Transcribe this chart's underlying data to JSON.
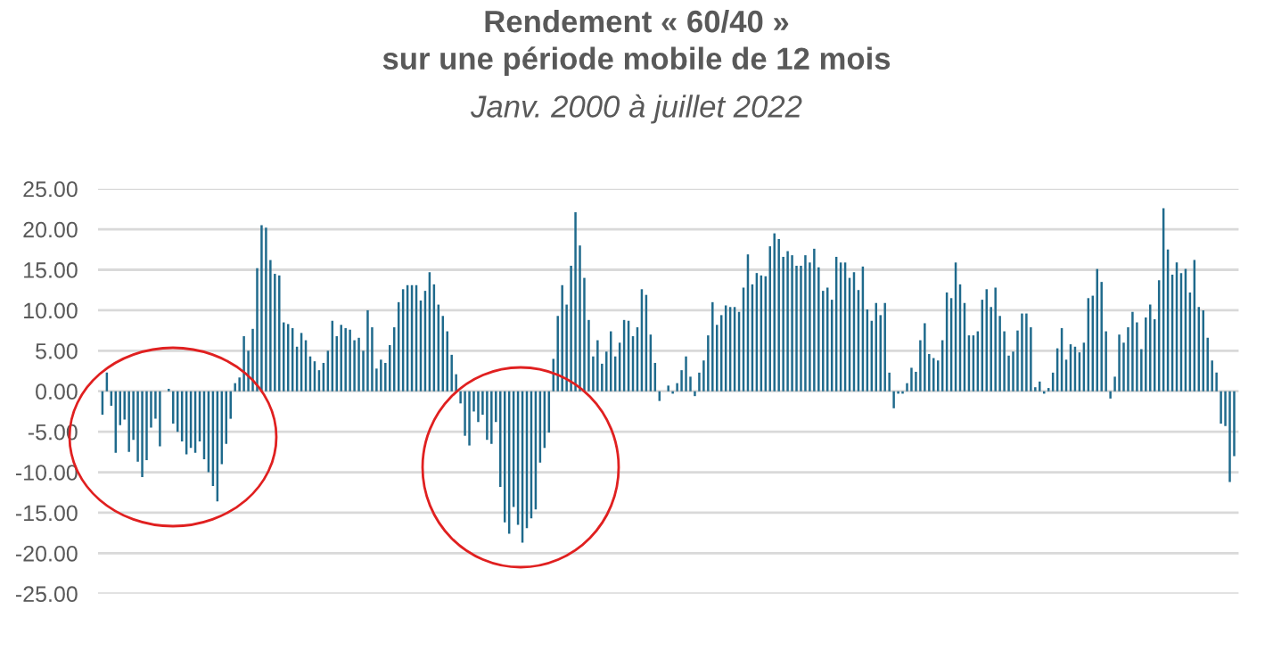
{
  "chart_data": {
    "type": "bar",
    "title": "Rendement « 60/40 »\nsur une période mobile de 12 mois",
    "subtitle": "Janv. 2000 à juillet 2022",
    "color": "#1f6a8c",
    "values": [
      -2.9,
      2.3,
      -1.8,
      -7.6,
      -4.2,
      -3.5,
      -7.5,
      -6,
      -8.7,
      -10.6,
      -8.5,
      -4.5,
      -3.4,
      -6.8,
      0,
      0.3,
      -4,
      -5,
      -6.2,
      -7.8,
      -7,
      -7.6,
      -6.2,
      -8.4,
      -10,
      -11.7,
      -13.6,
      -9,
      -6.5,
      -3.4,
      1,
      1.7,
      6.8,
      5,
      7.7,
      15.2,
      20.5,
      20.2,
      16.2,
      14.5,
      14.3,
      8.5,
      8.3,
      7.8,
      5.5,
      7.2,
      6.3,
      4.3,
      3.7,
      2.6,
      3.5,
      5,
      8.7,
      6.8,
      8.2,
      7.8,
      7.6,
      6.3,
      6.6,
      5,
      10,
      7.9,
      2.8,
      3.9,
      3.5,
      5.7,
      7.9,
      11,
      12.6,
      13.1,
      13.1,
      13.1,
      11.2,
      12.4,
      14.7,
      13.2,
      10.7,
      9.3,
      7.4,
      4.5,
      2.1,
      -1.5,
      -5.5,
      -6.7,
      -2.5,
      -3.8,
      -2.9,
      -6,
      -6.5,
      -3.8,
      -11.8,
      -16.2,
      -17.6,
      -14.3,
      -16.5,
      -18.7,
      -16.9,
      -15.7,
      -14.6,
      -8.8,
      -7,
      -5.1,
      4,
      9.3,
      13.1,
      10.7,
      15.5,
      22.1,
      18,
      14,
      8.8,
      4.3,
      6.3,
      3.4,
      4.9,
      7.4,
      4.3,
      6,
      8.8,
      8.7,
      6.8,
      7.9,
      12.6,
      11.9,
      7,
      3.5,
      -1.2,
      0,
      0.7,
      -0.3,
      1,
      2.6,
      4.3,
      1.8,
      -0.6,
      2.3,
      3.8,
      6.9,
      11,
      8.2,
      9.4,
      10.6,
      10.4,
      10.4,
      9.8,
      12.8,
      16.9,
      13.2,
      14.6,
      14.3,
      14.2,
      17.9,
      19.5,
      18.8,
      16.6,
      17.3,
      16.8,
      15.5,
      15.5,
      16.8,
      15.9,
      17.6,
      15.3,
      12.4,
      12.8,
      11.3,
      16.6,
      15.9,
      15.9,
      14,
      14.7,
      12.5,
      15.4,
      10.1,
      8.7,
      10.9,
      9.4,
      10.9,
      2.3,
      -2.1,
      -0.3,
      -0.3,
      1,
      2.9,
      2.4,
      6.3,
      8.4,
      4.6,
      4.1,
      3.8,
      6.3,
      12.2,
      11.5,
      15.9,
      13.2,
      10.9,
      6.9,
      6.9,
      7.4,
      11.3,
      12.6,
      10.4,
      12.8,
      9.3,
      7.4,
      4.4,
      4.9,
      7.5,
      9.6,
      9.6,
      7.9,
      0.5,
      1.2,
      -0.3,
      0.4,
      2.3,
      5.3,
      7.8,
      3.9,
      5.8,
      5.5,
      4.8,
      6,
      11.5,
      11.8,
      15.1,
      13.5,
      7.4,
      -0.9,
      1.8,
      7,
      6,
      7.9,
      9.8,
      8.5,
      5.2,
      9.1,
      10.7,
      8.9,
      13.7,
      22.6,
      17.5,
      14.4,
      15.9,
      14.6,
      15.1,
      12.2,
      16.2,
      10.4,
      10,
      6.6,
      3.8,
      2.3,
      -4,
      -4.3,
      -11.2,
      -8
    ],
    "ylim": [
      -25,
      25
    ],
    "yticks": [
      {
        "value": -25,
        "label": "-25.00"
      },
      {
        "value": -20,
        "label": "-20.00"
      },
      {
        "value": -15,
        "label": "-15.00"
      },
      {
        "value": -10,
        "label": "-10.00"
      },
      {
        "value": -5,
        "label": "-5.00"
      },
      {
        "value": 0,
        "label": "0.00"
      },
      {
        "value": 5,
        "label": "5.00"
      },
      {
        "value": 10,
        "label": "10.00"
      },
      {
        "value": 15,
        "label": "15.00"
      },
      {
        "value": 20,
        "label": "20.00"
      },
      {
        "value": 25,
        "label": "25.00"
      }
    ],
    "grid": "y",
    "legend": false
  }
}
